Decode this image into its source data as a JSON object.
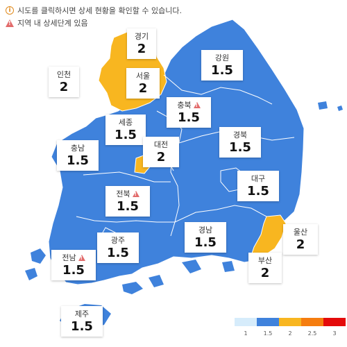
{
  "notes": {
    "info_text": "시도를 클릭하시면 상세 현황을 확인할 수 있습니다.",
    "warn_text": "지역 내 상세단계 있음"
  },
  "colors": {
    "level_1": "#d6ecfb",
    "level_1_5": "#3f82dc",
    "level_2": "#f8b620",
    "level_2_5": "#f57d0f",
    "level_3": "#e40a0a"
  },
  "regions": [
    {
      "id": "gyeonggi",
      "name": "경기",
      "level": "2",
      "warning": false
    },
    {
      "id": "incheon",
      "name": "인천",
      "level": "2",
      "warning": false
    },
    {
      "id": "seoul",
      "name": "서울",
      "level": "2",
      "warning": false
    },
    {
      "id": "gangwon",
      "name": "강원",
      "level": "1.5",
      "warning": false
    },
    {
      "id": "chungbuk",
      "name": "충북",
      "level": "1.5",
      "warning": true
    },
    {
      "id": "sejong",
      "name": "세종",
      "level": "1.5",
      "warning": false
    },
    {
      "id": "gyeongbuk",
      "name": "경북",
      "level": "1.5",
      "warning": false
    },
    {
      "id": "daejeon",
      "name": "대전",
      "level": "2",
      "warning": false
    },
    {
      "id": "chungnam",
      "name": "충남",
      "level": "1.5",
      "warning": false
    },
    {
      "id": "daegu",
      "name": "대구",
      "level": "1.5",
      "warning": false
    },
    {
      "id": "jeonbuk",
      "name": "전북",
      "level": "1.5",
      "warning": true
    },
    {
      "id": "ulsan",
      "name": "울산",
      "level": "2",
      "warning": false
    },
    {
      "id": "gwangju",
      "name": "광주",
      "level": "1.5",
      "warning": false
    },
    {
      "id": "gyeongnam",
      "name": "경남",
      "level": "1.5",
      "warning": false
    },
    {
      "id": "jeonnam",
      "name": "전남",
      "level": "1.5",
      "warning": true
    },
    {
      "id": "busan",
      "name": "부산",
      "level": "2",
      "warning": false
    },
    {
      "id": "jeju",
      "name": "제주",
      "level": "1.5",
      "warning": false
    }
  ],
  "legend": {
    "levels": [
      "1",
      "1.5",
      "2",
      "2.5",
      "3"
    ]
  }
}
